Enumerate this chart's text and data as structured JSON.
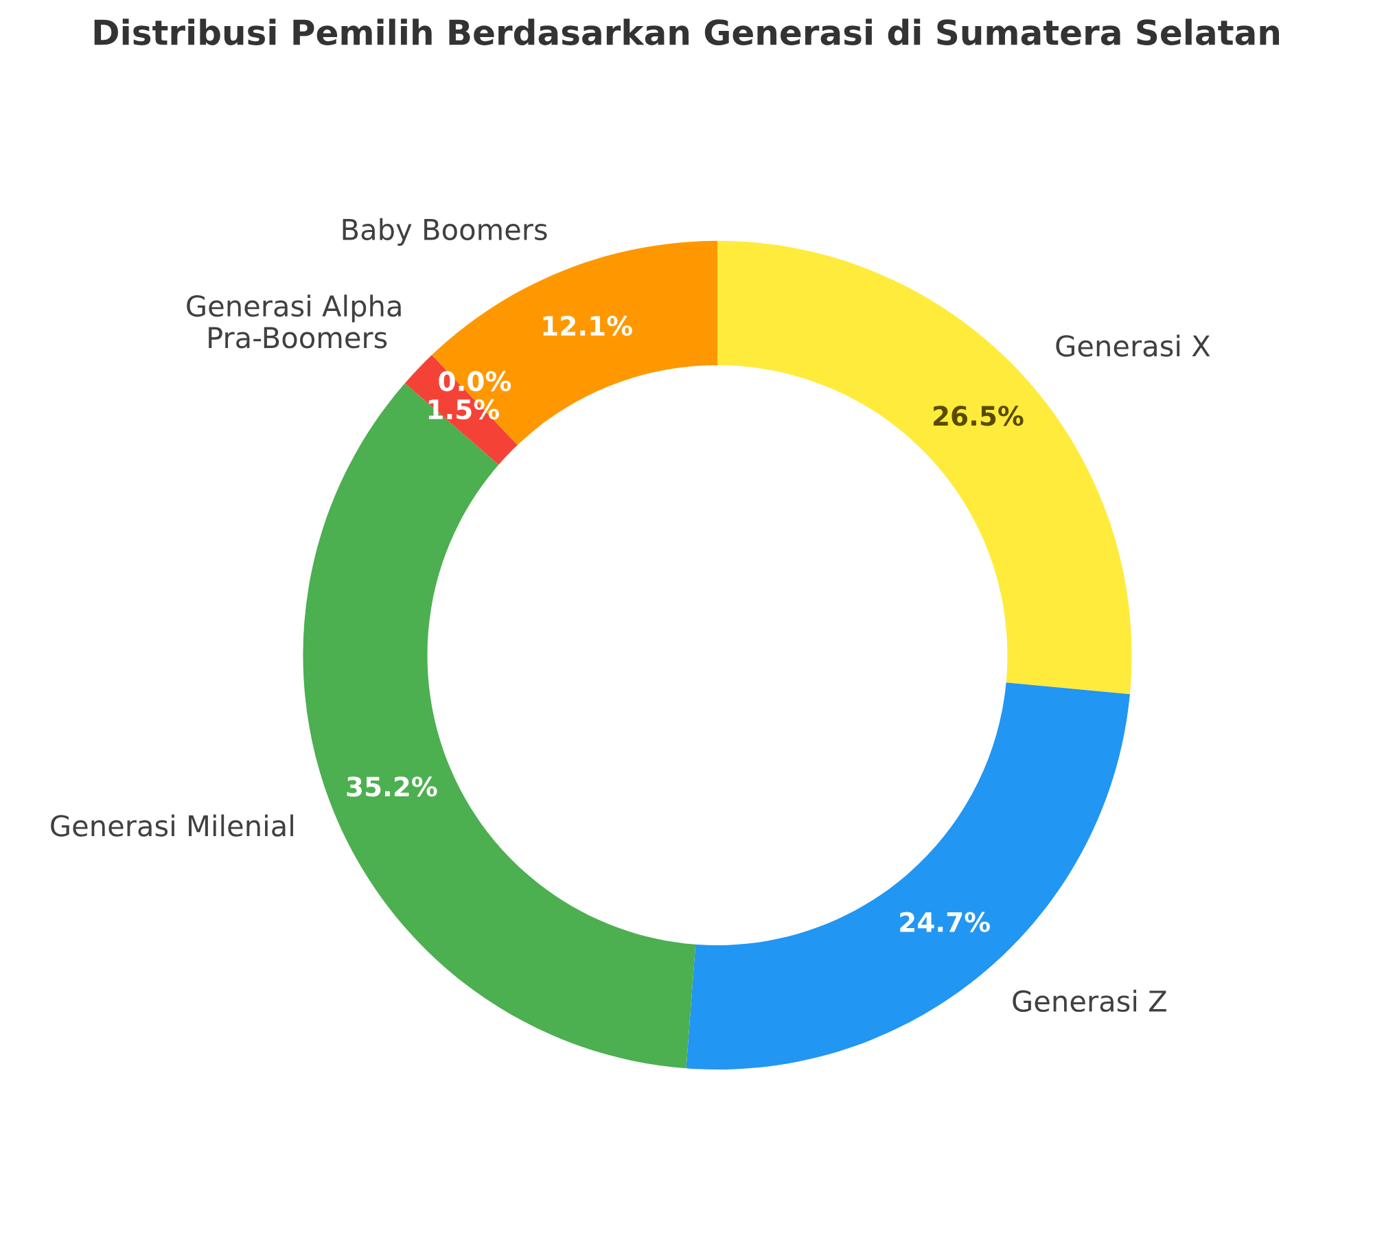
{
  "chart_data": {
    "type": "donut",
    "title": "Distribusi Pemilih Berdasarkan Generasi di Sumatera Selatan",
    "categories": [
      "Generasi X",
      "Generasi Z",
      "Generasi Milenial",
      "Pra-Boomers",
      "Generasi Alpha",
      "Baby Boomers"
    ],
    "values": [
      26.5,
      24.7,
      35.2,
      1.5,
      0.0,
      12.1
    ],
    "value_labels": [
      "26.5%",
      "24.7%",
      "35.2%",
      "1.5%",
      "0.0%",
      "12.1%"
    ],
    "colors": [
      "#ffeb3b",
      "#2196f3",
      "#4caf50",
      "#f44336",
      "#9c27b0",
      "#ff9800"
    ],
    "legend": false
  }
}
